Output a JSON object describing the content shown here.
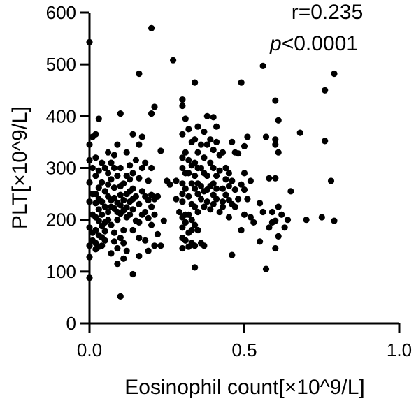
{
  "chart_data": {
    "type": "scatter",
    "xlabel": "Eosinophil count[×10^9/L]",
    "ylabel": "PLT[×10^9/L]",
    "xlim": [
      0,
      1.0
    ],
    "ylim": [
      0,
      600
    ],
    "xticks": [
      0.0,
      0.5,
      1.0
    ],
    "xtick_labels": [
      "0.0",
      "0.5",
      "1.0"
    ],
    "yticks": [
      0,
      100,
      200,
      300,
      400,
      500,
      600
    ],
    "ytick_labels": [
      "0",
      "100",
      "200",
      "300",
      "400",
      "500",
      "600"
    ],
    "grid": false,
    "annotations": {
      "r_text": "r=0.235",
      "p_letter": "p",
      "p_text": "<0.0001"
    },
    "marker_color": "#000000",
    "points": [
      [
        0.0,
        543
      ],
      [
        0.0,
        345
      ],
      [
        0.0,
        315
      ],
      [
        0.0,
        272
      ],
      [
        0.0,
        235
      ],
      [
        0.0,
        185
      ],
      [
        0.0,
        150
      ],
      [
        0.0,
        128
      ],
      [
        0.0,
        88
      ],
      [
        0.01,
        360
      ],
      [
        0.01,
        300
      ],
      [
        0.01,
        250
      ],
      [
        0.01,
        210
      ],
      [
        0.01,
        175
      ],
      [
        0.01,
        160
      ],
      [
        0.02,
        365
      ],
      [
        0.02,
        320
      ],
      [
        0.02,
        285
      ],
      [
        0.02,
        250
      ],
      [
        0.02,
        232
      ],
      [
        0.02,
        205
      ],
      [
        0.02,
        180
      ],
      [
        0.02,
        155
      ],
      [
        0.02,
        143
      ],
      [
        0.03,
        395
      ],
      [
        0.03,
        295
      ],
      [
        0.03,
        262
      ],
      [
        0.03,
        240
      ],
      [
        0.03,
        220
      ],
      [
        0.03,
        198
      ],
      [
        0.03,
        170
      ],
      [
        0.03,
        148
      ],
      [
        0.04,
        310
      ],
      [
        0.04,
        272
      ],
      [
        0.04,
        235
      ],
      [
        0.04,
        210
      ],
      [
        0.04,
        188
      ],
      [
        0.04,
        166
      ],
      [
        0.04,
        150
      ],
      [
        0.05,
        300
      ],
      [
        0.05,
        255
      ],
      [
        0.05,
        225
      ],
      [
        0.05,
        195
      ],
      [
        0.05,
        178
      ],
      [
        0.05,
        160
      ],
      [
        0.06,
        330
      ],
      [
        0.06,
        290
      ],
      [
        0.06,
        268
      ],
      [
        0.06,
        245
      ],
      [
        0.06,
        215
      ],
      [
        0.06,
        200
      ],
      [
        0.07,
        310
      ],
      [
        0.07,
        278
      ],
      [
        0.07,
        238
      ],
      [
        0.07,
        225
      ],
      [
        0.07,
        190
      ],
      [
        0.07,
        135
      ],
      [
        0.08,
        325
      ],
      [
        0.08,
        300
      ],
      [
        0.08,
        262
      ],
      [
        0.08,
        242
      ],
      [
        0.08,
        222
      ],
      [
        0.08,
        175
      ],
      [
        0.08,
        158
      ],
      [
        0.09,
        345
      ],
      [
        0.09,
        285
      ],
      [
        0.09,
        233
      ],
      [
        0.09,
        215
      ],
      [
        0.09,
        200
      ],
      [
        0.09,
        145
      ],
      [
        0.09,
        115
      ],
      [
        0.1,
        405
      ],
      [
        0.1,
        300
      ],
      [
        0.1,
        265
      ],
      [
        0.1,
        248
      ],
      [
        0.1,
        228
      ],
      [
        0.1,
        212
      ],
      [
        0.1,
        165
      ],
      [
        0.1,
        52
      ],
      [
        0.11,
        270
      ],
      [
        0.11,
        238
      ],
      [
        0.11,
        218
      ],
      [
        0.11,
        180
      ],
      [
        0.11,
        155
      ],
      [
        0.11,
        125
      ],
      [
        0.12,
        330
      ],
      [
        0.12,
        285
      ],
      [
        0.12,
        250
      ],
      [
        0.12,
        224
      ],
      [
        0.12,
        205
      ],
      [
        0.12,
        140
      ],
      [
        0.13,
        305
      ],
      [
        0.13,
        278
      ],
      [
        0.13,
        255
      ],
      [
        0.13,
        235
      ],
      [
        0.13,
        210
      ],
      [
        0.14,
        365
      ],
      [
        0.14,
        290
      ],
      [
        0.14,
        260
      ],
      [
        0.14,
        240
      ],
      [
        0.14,
        220
      ],
      [
        0.14,
        180
      ],
      [
        0.14,
        95
      ],
      [
        0.15,
        315
      ],
      [
        0.15,
        245
      ],
      [
        0.15,
        198
      ],
      [
        0.16,
        482
      ],
      [
        0.16,
        345
      ],
      [
        0.16,
        280
      ],
      [
        0.16,
        230
      ],
      [
        0.16,
        195
      ],
      [
        0.16,
        165
      ],
      [
        0.16,
        130
      ],
      [
        0.17,
        360
      ],
      [
        0.17,
        300
      ],
      [
        0.17,
        255
      ],
      [
        0.17,
        210
      ],
      [
        0.18,
        310
      ],
      [
        0.18,
        245
      ],
      [
        0.18,
        215
      ],
      [
        0.18,
        160
      ],
      [
        0.19,
        275
      ],
      [
        0.19,
        238
      ],
      [
        0.19,
        203
      ],
      [
        0.19,
        140
      ],
      [
        0.2,
        570
      ],
      [
        0.2,
        405
      ],
      [
        0.2,
        300
      ],
      [
        0.2,
        248
      ],
      [
        0.2,
        225
      ],
      [
        0.2,
        190
      ],
      [
        0.21,
        418
      ],
      [
        0.21,
        240
      ],
      [
        0.21,
        210
      ],
      [
        0.21,
        150
      ],
      [
        0.22,
        245
      ],
      [
        0.22,
        172
      ],
      [
        0.23,
        333
      ],
      [
        0.23,
        150
      ],
      [
        0.24,
        198
      ],
      [
        0.25,
        275
      ],
      [
        0.26,
        268
      ],
      [
        0.27,
        508
      ],
      [
        0.28,
        275
      ],
      [
        0.28,
        240
      ],
      [
        0.29,
        215
      ],
      [
        0.3,
        432
      ],
      [
        0.3,
        420
      ],
      [
        0.3,
        365
      ],
      [
        0.3,
        320
      ],
      [
        0.3,
        300
      ],
      [
        0.3,
        270
      ],
      [
        0.3,
        250
      ],
      [
        0.3,
        235
      ],
      [
        0.3,
        205
      ],
      [
        0.3,
        185
      ],
      [
        0.3,
        165
      ],
      [
        0.3,
        145
      ],
      [
        0.31,
        395
      ],
      [
        0.31,
        330
      ],
      [
        0.31,
        290
      ],
      [
        0.31,
        260
      ],
      [
        0.31,
        210
      ],
      [
        0.31,
        195
      ],
      [
        0.31,
        160
      ],
      [
        0.32,
        375
      ],
      [
        0.32,
        315
      ],
      [
        0.32,
        290
      ],
      [
        0.32,
        245
      ],
      [
        0.32,
        210
      ],
      [
        0.32,
        175
      ],
      [
        0.32,
        148
      ],
      [
        0.33,
        350
      ],
      [
        0.33,
        305
      ],
      [
        0.33,
        270
      ],
      [
        0.33,
        230
      ],
      [
        0.33,
        200
      ],
      [
        0.33,
        180
      ],
      [
        0.33,
        155
      ],
      [
        0.34,
        465
      ],
      [
        0.34,
        355
      ],
      [
        0.34,
        310
      ],
      [
        0.34,
        285
      ],
      [
        0.34,
        260
      ],
      [
        0.34,
        225
      ],
      [
        0.34,
        190
      ],
      [
        0.34,
        150
      ],
      [
        0.34,
        108
      ],
      [
        0.35,
        380
      ],
      [
        0.35,
        330
      ],
      [
        0.35,
        300
      ],
      [
        0.35,
        270
      ],
      [
        0.35,
        250
      ],
      [
        0.35,
        215
      ],
      [
        0.35,
        180
      ],
      [
        0.36,
        345
      ],
      [
        0.36,
        300
      ],
      [
        0.36,
        265
      ],
      [
        0.36,
        240
      ],
      [
        0.36,
        155
      ],
      [
        0.37,
        370
      ],
      [
        0.37,
        320
      ],
      [
        0.37,
        290
      ],
      [
        0.37,
        255
      ],
      [
        0.37,
        225
      ],
      [
        0.37,
        150
      ],
      [
        0.38,
        400
      ],
      [
        0.38,
        345
      ],
      [
        0.38,
        285
      ],
      [
        0.38,
        258
      ],
      [
        0.38,
        235
      ],
      [
        0.39,
        355
      ],
      [
        0.39,
        310
      ],
      [
        0.39,
        265
      ],
      [
        0.39,
        220
      ],
      [
        0.4,
        398
      ],
      [
        0.4,
        335
      ],
      [
        0.4,
        300
      ],
      [
        0.4,
        270
      ],
      [
        0.4,
        248
      ],
      [
        0.4,
        230
      ],
      [
        0.41,
        380
      ],
      [
        0.41,
        350
      ],
      [
        0.41,
        285
      ],
      [
        0.41,
        260
      ],
      [
        0.41,
        240
      ],
      [
        0.42,
        325
      ],
      [
        0.42,
        295
      ],
      [
        0.42,
        215
      ],
      [
        0.43,
        330
      ],
      [
        0.43,
        260
      ],
      [
        0.43,
        235
      ],
      [
        0.43,
        225
      ],
      [
        0.44,
        300
      ],
      [
        0.44,
        278
      ],
      [
        0.44,
        248
      ],
      [
        0.45,
        290
      ],
      [
        0.45,
        265
      ],
      [
        0.45,
        238
      ],
      [
        0.45,
        205
      ],
      [
        0.46,
        350
      ],
      [
        0.46,
        275
      ],
      [
        0.46,
        230
      ],
      [
        0.46,
        132
      ],
      [
        0.47,
        330
      ],
      [
        0.47,
        258
      ],
      [
        0.47,
        225
      ],
      [
        0.48,
        328
      ],
      [
        0.48,
        240
      ],
      [
        0.49,
        465
      ],
      [
        0.49,
        268
      ],
      [
        0.49,
        180
      ],
      [
        0.5,
        342
      ],
      [
        0.5,
        290
      ],
      [
        0.5,
        258
      ],
      [
        0.5,
        210
      ],
      [
        0.51,
        360
      ],
      [
        0.51,
        240
      ],
      [
        0.52,
        275
      ],
      [
        0.52,
        205
      ],
      [
        0.53,
        195
      ],
      [
        0.55,
        232
      ],
      [
        0.55,
        158
      ],
      [
        0.56,
        497
      ],
      [
        0.56,
        215
      ],
      [
        0.57,
        360
      ],
      [
        0.57,
        105
      ],
      [
        0.58,
        280
      ],
      [
        0.58,
        185
      ],
      [
        0.59,
        215
      ],
      [
        0.59,
        195
      ],
      [
        0.6,
        430
      ],
      [
        0.6,
        355
      ],
      [
        0.6,
        345
      ],
      [
        0.6,
        280
      ],
      [
        0.6,
        198
      ],
      [
        0.6,
        145
      ],
      [
        0.61,
        392
      ],
      [
        0.61,
        330
      ],
      [
        0.61,
        225
      ],
      [
        0.61,
        168
      ],
      [
        0.62,
        210
      ],
      [
        0.63,
        185
      ],
      [
        0.64,
        200
      ],
      [
        0.65,
        255
      ],
      [
        0.68,
        368
      ],
      [
        0.7,
        200
      ],
      [
        0.75,
        205
      ],
      [
        0.76,
        450
      ],
      [
        0.76,
        352
      ],
      [
        0.78,
        275
      ],
      [
        0.79,
        482
      ],
      [
        0.79,
        198
      ]
    ]
  }
}
